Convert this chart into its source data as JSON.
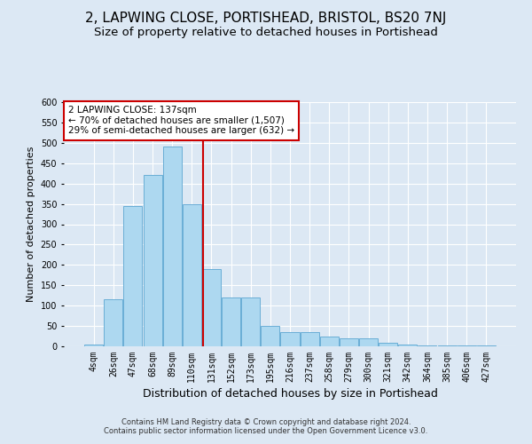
{
  "title": "2, LAPWING CLOSE, PORTISHEAD, BRISTOL, BS20 7NJ",
  "subtitle": "Size of property relative to detached houses in Portishead",
  "xlabel": "Distribution of detached houses by size in Portishead",
  "ylabel": "Number of detached properties",
  "footer_line1": "Contains HM Land Registry data © Crown copyright and database right 2024.",
  "footer_line2": "Contains public sector information licensed under the Open Government Licence v3.0.",
  "categories": [
    "4sqm",
    "26sqm",
    "47sqm",
    "68sqm",
    "89sqm",
    "110sqm",
    "131sqm",
    "152sqm",
    "173sqm",
    "195sqm",
    "216sqm",
    "237sqm",
    "258sqm",
    "279sqm",
    "300sqm",
    "321sqm",
    "342sqm",
    "364sqm",
    "385sqm",
    "406sqm",
    "427sqm"
  ],
  "values": [
    5,
    115,
    345,
    420,
    490,
    350,
    190,
    120,
    120,
    50,
    35,
    35,
    25,
    20,
    20,
    8,
    5,
    2,
    2,
    2,
    2
  ],
  "bar_color": "#add8f0",
  "bar_edge_color": "#6aaed6",
  "annotation_box_text": "2 LAPWING CLOSE: 137sqm\n← 70% of detached houses are smaller (1,507)\n29% of semi-detached houses are larger (632) →",
  "annotation_box_color": "#cc0000",
  "vline_x_index": 5.55,
  "vline_color": "#cc0000",
  "ylim": [
    0,
    600
  ],
  "yticks": [
    0,
    50,
    100,
    150,
    200,
    250,
    300,
    350,
    400,
    450,
    500,
    550,
    600
  ],
  "background_color": "#dce8f4",
  "plot_background_color": "#dce8f4",
  "grid_color": "#ffffff",
  "title_fontsize": 11,
  "subtitle_fontsize": 9.5,
  "ylabel_fontsize": 8,
  "xlabel_fontsize": 9,
  "tick_fontsize": 7,
  "footer_fontsize": 6,
  "annot_fontsize": 7.5
}
